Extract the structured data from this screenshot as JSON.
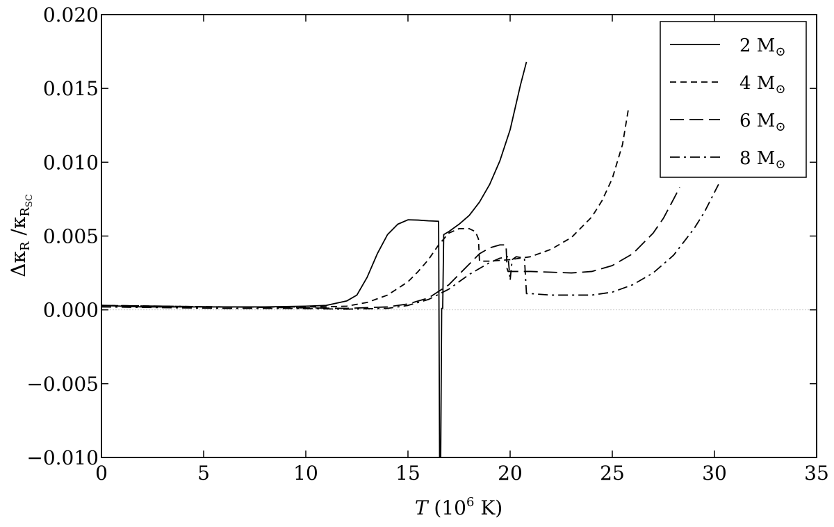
{
  "chart_data": {
    "type": "line",
    "xlabel": {
      "italic": "T",
      "rest_pre": " (10",
      "sup": "6",
      "rest_post": " K)"
    },
    "ylabel": {
      "delta": "Δκ",
      "sub1": "R",
      "slash": " /κ",
      "sub2": "R",
      "sub3": "SC"
    },
    "xlim": [
      0,
      35
    ],
    "ylim": [
      -0.01,
      0.02
    ],
    "x_ticks": [
      0,
      5,
      10,
      15,
      20,
      25,
      30,
      35
    ],
    "x_tick_labels": [
      "0",
      "5",
      "10",
      "15",
      "20",
      "25",
      "30",
      "35"
    ],
    "y_ticks": [
      -0.01,
      -0.005,
      0.0,
      0.005,
      0.01,
      0.015,
      0.02
    ],
    "y_tick_labels": [
      "−0.010",
      "−0.005",
      "0.000",
      "0.005",
      "0.010",
      "0.015",
      "0.020"
    ],
    "zero_line": true,
    "legend_position": "top-right",
    "series": [
      {
        "name": "2 M",
        "symbol": "⊙",
        "dash": "solid",
        "x": [
          0,
          2,
          5,
          8,
          10,
          11,
          12,
          12.5,
          13,
          13.5,
          14,
          14.5,
          15,
          15.5,
          16,
          16.5,
          16.55,
          16.6,
          16.65,
          16.7,
          16.75,
          17,
          17.5,
          18,
          18.5,
          19,
          19.5,
          20,
          20.5,
          20.8
        ],
        "y": [
          0.0003,
          0.0002,
          0.0002,
          0.0002,
          0.00025,
          0.0003,
          0.0006,
          0.001,
          0.0022,
          0.0038,
          0.0051,
          0.0058,
          0.0061,
          0.00608,
          0.00603,
          0.006,
          -0.0105,
          -0.0105,
          0.0001,
          0.0001,
          0.0051,
          0.0053,
          0.0058,
          0.0064,
          0.0073,
          0.0085,
          0.0101,
          0.0122,
          0.0152,
          0.0168
        ]
      },
      {
        "name": "4 M",
        "symbol": "⊙",
        "dash": "short",
        "x": [
          0,
          3,
          6,
          9,
          11,
          12,
          13,
          14,
          15,
          15.5,
          16,
          16.5,
          17,
          17.5,
          18,
          18.3,
          18.45,
          18.5,
          19,
          20,
          21,
          22,
          23,
          24,
          24.5,
          25,
          25.5,
          25.8
        ],
        "y": [
          0.0003,
          0.00025,
          0.0002,
          0.0002,
          0.0002,
          0.00025,
          0.0005,
          0.001,
          0.0019,
          0.0026,
          0.0034,
          0.0044,
          0.0052,
          0.0055,
          0.0055,
          0.0053,
          0.0048,
          0.0033,
          0.0033,
          0.0034,
          0.0036,
          0.0041,
          0.0049,
          0.0063,
          0.0074,
          0.0089,
          0.0112,
          0.0137
        ]
      },
      {
        "name": "6 M",
        "symbol": "⊙",
        "dash": "long",
        "x": [
          0,
          3,
          6,
          9,
          12,
          14,
          15,
          16,
          17,
          18,
          18.5,
          19,
          19.5,
          19.8,
          19.85,
          19.9,
          20,
          21,
          22,
          23,
          24,
          25,
          26,
          27,
          27.5,
          28,
          28.3
        ],
        "y": [
          0.0003,
          0.00025,
          0.0002,
          0.00015,
          0.0001,
          0.0002,
          0.0004,
          0.0008,
          0.0017,
          0.0031,
          0.0038,
          0.0042,
          0.0044,
          0.0044,
          0.0028,
          0.0026,
          0.0026,
          0.0026,
          0.00255,
          0.0025,
          0.0026,
          0.003,
          0.0038,
          0.0052,
          0.0062,
          0.0075,
          0.0083
        ]
      },
      {
        "name": "8 M",
        "symbol": "⊙",
        "dash": "dashdot",
        "x": [
          0,
          3,
          6,
          9,
          12,
          14,
          15,
          16,
          17,
          18,
          19,
          19.5,
          19.9,
          20,
          20.1,
          20.3,
          20.7,
          20.75,
          20.8,
          21,
          22,
          23,
          24,
          25,
          26,
          27,
          28,
          29,
          29.5,
          30.2
        ],
        "y": [
          0.0002,
          0.00015,
          0.0001,
          0.0001,
          5e-05,
          0.0001,
          0.0003,
          0.0007,
          0.0014,
          0.0024,
          0.0032,
          0.0035,
          0.0036,
          0.002,
          0.0034,
          0.0036,
          0.0035,
          0.0023,
          0.0011,
          0.0011,
          0.001,
          0.001,
          0.001,
          0.0012,
          0.0017,
          0.0025,
          0.0037,
          0.0055,
          0.0066,
          0.0085
        ]
      }
    ]
  }
}
